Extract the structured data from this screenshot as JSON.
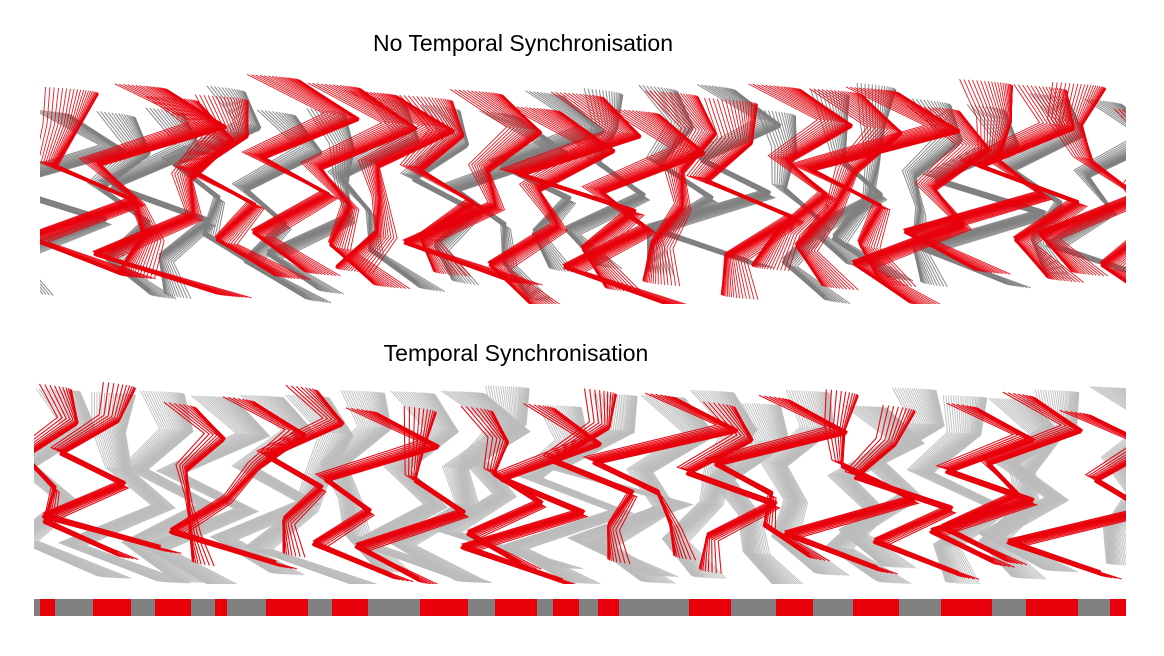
{
  "panels": [
    {
      "id": "top",
      "title": "No Temporal Synchronisation",
      "synchronised": false
    },
    {
      "id": "bottom",
      "title": "Temporal Synchronisation",
      "synchronised": true
    }
  ],
  "colors": {
    "reference_series": "#e8000b",
    "query_series": "#808080",
    "query_series_light": "#bdbdbd",
    "background": "#ffffff"
  },
  "legend": null
}
